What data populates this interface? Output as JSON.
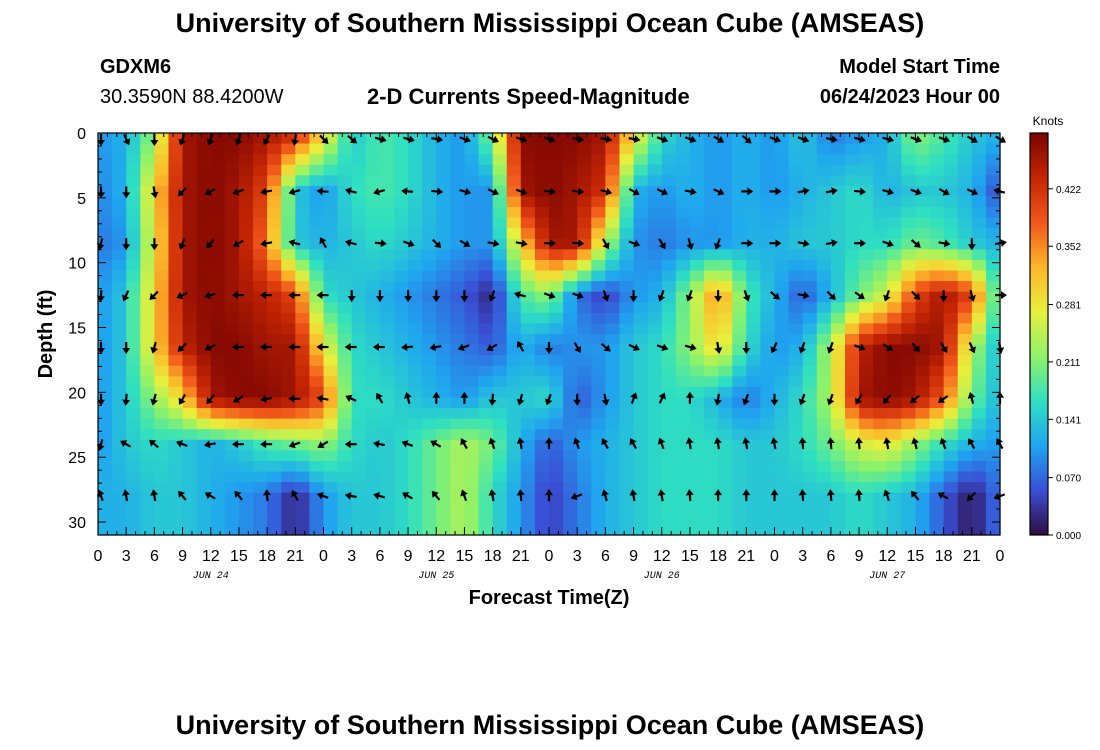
{
  "header": {
    "title": "University of Southern Mississippi Ocean Cube (AMSEAS)",
    "station_name": "GDXM6",
    "station_coords": "30.3590N  88.4200W",
    "subtitle": "2-D Currents Speed-Magnitude",
    "model_start_label": "Model Start Time",
    "model_start_value": "06/24/2023 Hour 00"
  },
  "footer": {
    "title": "University of Southern Mississippi Ocean Cube (AMSEAS)"
  },
  "colors": {
    "arrow": "#000000",
    "colormap": [
      "#2f0c3d",
      "#3a4fd6",
      "#1fa5f0",
      "#2fe0c0",
      "#8df26a",
      "#e8ef3c",
      "#fcb62a",
      "#f1561a",
      "#c42503",
      "#7a0403"
    ]
  },
  "chart_data": {
    "type": "heatmap",
    "subtitle": "2-D Currents Speed-Magnitude",
    "xlabel": "Forecast Time(Z)",
    "ylabel": "Depth (ft)",
    "x_ticks": [
      "0",
      "3",
      "6",
      "9",
      "12",
      "15",
      "18",
      "21",
      "0",
      "3",
      "6",
      "9",
      "12",
      "15",
      "18",
      "21",
      "0",
      "3",
      "6",
      "9",
      "12",
      "15",
      "18",
      "21",
      "0",
      "3",
      "6",
      "9",
      "12",
      "15",
      "18",
      "21",
      "0"
    ],
    "day_labels": [
      "JUN 24",
      "JUN 25",
      "JUN 26",
      "JUN 27"
    ],
    "y_ticks": [
      "0",
      "5",
      "10",
      "15",
      "20",
      "25",
      "30"
    ],
    "ylim": [
      0,
      31
    ],
    "xlim_hours": [
      0,
      96
    ],
    "colorbar": {
      "label": "Knots",
      "ticks": [
        "0.000",
        "0.070",
        "0.141",
        "0.211",
        "0.281",
        "0.352",
        "0.422"
      ],
      "range": [
        0,
        0.49
      ]
    },
    "depths_ft": [
      0,
      4.5,
      8.5,
      12.5,
      16.5,
      20.5,
      24,
      28
    ],
    "times_hours": [
      0,
      3,
      6,
      9,
      12,
      15,
      18,
      21,
      24,
      27,
      30,
      33,
      36,
      39,
      42,
      45,
      48,
      51,
      54,
      57,
      60,
      63,
      66,
      69,
      72,
      75,
      78,
      81,
      84,
      87,
      90,
      93,
      96
    ],
    "speed_knots": [
      [
        0.1,
        0.12,
        0.22,
        0.46,
        0.48,
        0.48,
        0.46,
        0.44,
        0.3,
        0.14,
        0.18,
        0.16,
        0.12,
        0.1,
        0.22,
        0.48,
        0.48,
        0.48,
        0.46,
        0.3,
        0.16,
        0.12,
        0.1,
        0.12,
        0.1,
        0.14,
        0.08,
        0.1,
        0.12,
        0.22,
        0.18,
        0.14,
        0.12
      ],
      [
        0.09,
        0.12,
        0.3,
        0.46,
        0.48,
        0.46,
        0.4,
        0.14,
        0.1,
        0.16,
        0.18,
        0.16,
        0.12,
        0.1,
        0.1,
        0.46,
        0.48,
        0.46,
        0.42,
        0.12,
        0.1,
        0.12,
        0.1,
        0.12,
        0.1,
        0.12,
        0.14,
        0.16,
        0.12,
        0.14,
        0.14,
        0.12,
        0.05
      ],
      [
        0.08,
        0.1,
        0.28,
        0.46,
        0.48,
        0.46,
        0.36,
        0.14,
        0.12,
        0.14,
        0.16,
        0.14,
        0.12,
        0.1,
        0.1,
        0.3,
        0.46,
        0.46,
        0.24,
        0.1,
        0.08,
        0.1,
        0.1,
        0.12,
        0.12,
        0.14,
        0.14,
        0.16,
        0.16,
        0.2,
        0.18,
        0.14,
        0.12
      ],
      [
        0.1,
        0.14,
        0.3,
        0.46,
        0.48,
        0.46,
        0.44,
        0.4,
        0.16,
        0.14,
        0.12,
        0.1,
        0.08,
        0.06,
        0.02,
        0.18,
        0.22,
        0.08,
        0.04,
        0.1,
        0.12,
        0.22,
        0.36,
        0.18,
        0.12,
        0.06,
        0.12,
        0.2,
        0.26,
        0.4,
        0.46,
        0.4,
        0.14
      ],
      [
        0.1,
        0.14,
        0.3,
        0.44,
        0.48,
        0.48,
        0.46,
        0.46,
        0.28,
        0.16,
        0.14,
        0.12,
        0.1,
        0.08,
        0.06,
        0.12,
        0.08,
        0.1,
        0.1,
        0.14,
        0.16,
        0.22,
        0.3,
        0.16,
        0.1,
        0.12,
        0.24,
        0.44,
        0.48,
        0.48,
        0.46,
        0.24,
        0.12
      ],
      [
        0.1,
        0.14,
        0.22,
        0.3,
        0.46,
        0.48,
        0.48,
        0.46,
        0.4,
        0.16,
        0.16,
        0.14,
        0.12,
        0.1,
        0.14,
        0.14,
        0.16,
        0.06,
        0.1,
        0.14,
        0.16,
        0.16,
        0.12,
        0.08,
        0.12,
        0.16,
        0.24,
        0.46,
        0.48,
        0.46,
        0.38,
        0.2,
        0.12
      ],
      [
        0.1,
        0.14,
        0.16,
        0.14,
        0.12,
        0.14,
        0.18,
        0.2,
        0.22,
        0.16,
        0.14,
        0.16,
        0.2,
        0.24,
        0.2,
        0.12,
        0.06,
        0.1,
        0.12,
        0.14,
        0.16,
        0.16,
        0.16,
        0.14,
        0.14,
        0.16,
        0.2,
        0.26,
        0.28,
        0.22,
        0.16,
        0.12,
        0.1
      ],
      [
        0.12,
        0.12,
        0.14,
        0.14,
        0.12,
        0.1,
        0.08,
        0.02,
        0.1,
        0.14,
        0.14,
        0.16,
        0.2,
        0.24,
        0.16,
        0.1,
        0.04,
        0.08,
        0.12,
        0.14,
        0.16,
        0.16,
        0.16,
        0.14,
        0.14,
        0.14,
        0.14,
        0.16,
        0.14,
        0.12,
        0.06,
        0.01,
        0.08
      ]
    ],
    "direction_deg": [
      [
        180,
        155,
        180,
        200,
        200,
        200,
        210,
        190,
        135,
        130,
        105,
        105,
        100,
        110,
        115,
        110,
        110,
        100,
        100,
        100,
        110,
        110,
        120,
        130,
        110,
        110,
        100,
        105,
        105,
        110,
        110,
        120,
        120
      ],
      [
        180,
        180,
        170,
        225,
        240,
        250,
        260,
        255,
        275,
        285,
        255,
        275,
        95,
        105,
        115,
        110,
        95,
        95,
        105,
        120,
        115,
        100,
        115,
        90,
        90,
        80,
        80,
        95,
        105,
        110,
        120,
        115,
        285
      ],
      [
        195,
        180,
        180,
        200,
        220,
        240,
        260,
        285,
        330,
        285,
        95,
        110,
        135,
        120,
        100,
        100,
        90,
        95,
        150,
        110,
        150,
        165,
        200,
        90,
        90,
        100,
        80,
        90,
        110,
        130,
        100,
        180,
        80
      ],
      [
        185,
        205,
        225,
        245,
        255,
        270,
        270,
        270,
        270,
        180,
        180,
        180,
        180,
        180,
        200,
        285,
        110,
        110,
        160,
        180,
        200,
        200,
        180,
        160,
        130,
        100,
        135,
        125,
        200,
        135,
        180,
        165,
        90
      ],
      [
        180,
        180,
        195,
        225,
        245,
        270,
        270,
        270,
        270,
        270,
        270,
        265,
        260,
        250,
        240,
        330,
        180,
        150,
        130,
        115,
        110,
        105,
        170,
        180,
        205,
        200,
        200,
        110,
        125,
        140,
        150,
        155,
        170
      ],
      [
        180,
        185,
        195,
        210,
        220,
        240,
        260,
        270,
        280,
        295,
        330,
        345,
        360,
        0,
        185,
        195,
        200,
        180,
        170,
        20,
        25,
        360,
        190,
        200,
        180,
        200,
        200,
        210,
        220,
        230,
        235,
        345,
        360
      ],
      [
        195,
        300,
        310,
        290,
        260,
        270,
        270,
        250,
        240,
        270,
        280,
        290,
        300,
        330,
        340,
        350,
        360,
        340,
        330,
        330,
        340,
        350,
        350,
        350,
        350,
        355,
        355,
        355,
        350,
        345,
        340,
        330,
        330
      ],
      [
        340,
        350,
        350,
        320,
        300,
        320,
        355,
        330,
        290,
        280,
        285,
        300,
        320,
        340,
        350,
        355,
        360,
        250,
        345,
        350,
        350,
        355,
        360,
        360,
        360,
        355,
        355,
        355,
        340,
        320,
        300,
        225,
        250
      ]
    ]
  }
}
